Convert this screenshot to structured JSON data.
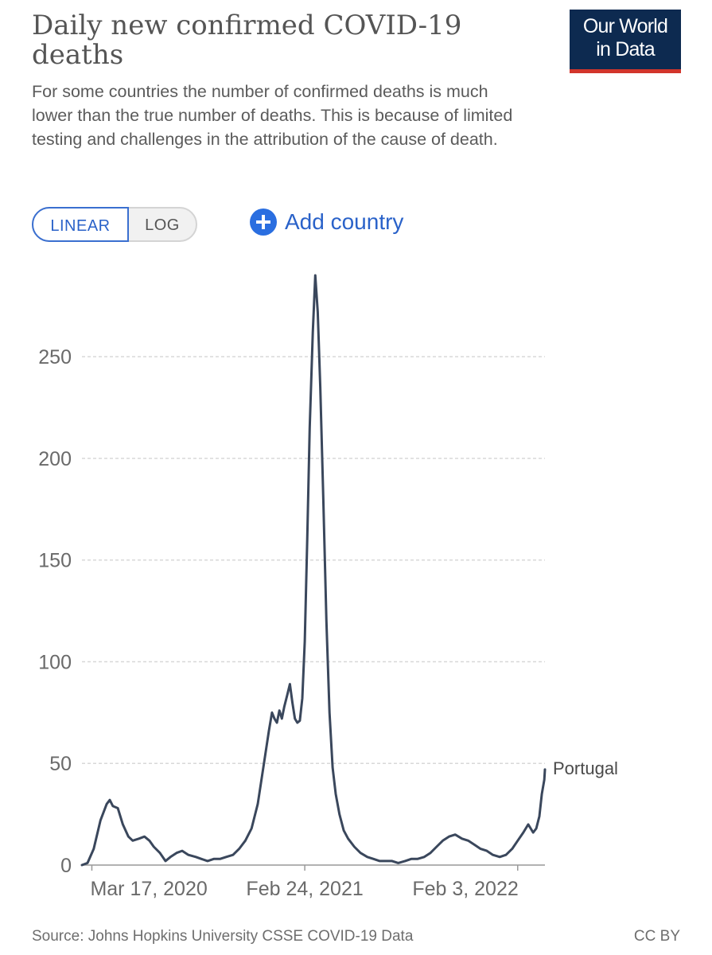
{
  "header": {
    "title": "Daily new confirmed COVID-19 deaths",
    "subtitle": "For some countries the number of confirmed deaths is much lower than the true number of deaths. This is because of limited testing and challenges in the attribution of the cause of death.",
    "logo_text": "Our World in Data"
  },
  "controls": {
    "linear_label": "LINEAR",
    "log_label": "LOG",
    "add_country_label": "Add country",
    "selected_scale": "linear"
  },
  "footer": {
    "source": "Source: Johns Hopkins University CSSE COVID-19 Data",
    "license": "CC BY"
  },
  "colors": {
    "line": "#3a475c",
    "accent_blue": "#2a62c9",
    "logo_bg": "#0d2a50",
    "logo_bar": "#d2352b"
  },
  "chart_data": {
    "type": "line",
    "title": "Daily new confirmed COVID-19 deaths",
    "ylim": [
      0,
      290
    ],
    "yticks": [
      0,
      50,
      100,
      150,
      200,
      250
    ],
    "xlim": [
      "2020-03-01",
      "2022-03-19"
    ],
    "xticks": [
      {
        "date": "2020-03-17",
        "label": "Mar 17, 2020"
      },
      {
        "date": "2021-02-24",
        "label": "Feb 24, 2021"
      },
      {
        "date": "2022-02-03",
        "label": "Feb 3, 2022"
      }
    ],
    "grid": "horizontal dashed",
    "series": [
      {
        "name": "Portugal",
        "points": [
          [
            "2020-03-01",
            0
          ],
          [
            "2020-03-10",
            1
          ],
          [
            "2020-03-20",
            8
          ],
          [
            "2020-03-31",
            22
          ],
          [
            "2020-04-10",
            30
          ],
          [
            "2020-04-15",
            32
          ],
          [
            "2020-04-20",
            29
          ],
          [
            "2020-04-28",
            28
          ],
          [
            "2020-05-06",
            20
          ],
          [
            "2020-05-15",
            14
          ],
          [
            "2020-05-22",
            12
          ],
          [
            "2020-06-01",
            13
          ],
          [
            "2020-06-10",
            14
          ],
          [
            "2020-06-18",
            12
          ],
          [
            "2020-06-25",
            9
          ],
          [
            "2020-07-05",
            6
          ],
          [
            "2020-07-14",
            2
          ],
          [
            "2020-07-22",
            4
          ],
          [
            "2020-08-01",
            6
          ],
          [
            "2020-08-10",
            7
          ],
          [
            "2020-08-20",
            5
          ],
          [
            "2020-09-01",
            4
          ],
          [
            "2020-09-10",
            3
          ],
          [
            "2020-09-20",
            2
          ],
          [
            "2020-09-30",
            3
          ],
          [
            "2020-10-10",
            3
          ],
          [
            "2020-10-20",
            4
          ],
          [
            "2020-10-31",
            5
          ],
          [
            "2020-11-10",
            8
          ],
          [
            "2020-11-20",
            12
          ],
          [
            "2020-11-30",
            18
          ],
          [
            "2020-12-10",
            30
          ],
          [
            "2020-12-20",
            50
          ],
          [
            "2020-12-28",
            66
          ],
          [
            "2021-01-02",
            75
          ],
          [
            "2021-01-06",
            72
          ],
          [
            "2021-01-10",
            70
          ],
          [
            "2021-01-14",
            76
          ],
          [
            "2021-01-18",
            72
          ],
          [
            "2021-01-22",
            78
          ],
          [
            "2021-01-27",
            84
          ],
          [
            "2021-01-31",
            89
          ],
          [
            "2021-02-04",
            80
          ],
          [
            "2021-02-08",
            72
          ],
          [
            "2021-02-12",
            70
          ],
          [
            "2021-02-16",
            71
          ],
          [
            "2021-02-20",
            82
          ],
          [
            "2021-02-24",
            110
          ],
          [
            "2021-02-28",
            160
          ],
          [
            "2021-03-04",
            215
          ],
          [
            "2021-03-09",
            262
          ],
          [
            "2021-03-13",
            290
          ],
          [
            "2021-03-17",
            272
          ],
          [
            "2021-03-21",
            235
          ],
          [
            "2021-03-26",
            180
          ],
          [
            "2021-03-31",
            120
          ],
          [
            "2021-04-05",
            75
          ],
          [
            "2021-04-10",
            48
          ],
          [
            "2021-04-15",
            35
          ],
          [
            "2021-04-21",
            25
          ],
          [
            "2021-04-28",
            17
          ],
          [
            "2021-05-05",
            13
          ],
          [
            "2021-05-15",
            9
          ],
          [
            "2021-05-25",
            6
          ],
          [
            "2021-06-05",
            4
          ],
          [
            "2021-06-15",
            3
          ],
          [
            "2021-06-25",
            2
          ],
          [
            "2021-07-05",
            2
          ],
          [
            "2021-07-15",
            2
          ],
          [
            "2021-07-25",
            1
          ],
          [
            "2021-08-05",
            2
          ],
          [
            "2021-08-15",
            3
          ],
          [
            "2021-08-25",
            3
          ],
          [
            "2021-09-05",
            4
          ],
          [
            "2021-09-15",
            6
          ],
          [
            "2021-09-25",
            9
          ],
          [
            "2021-10-05",
            12
          ],
          [
            "2021-10-15",
            14
          ],
          [
            "2021-10-25",
            15
          ],
          [
            "2021-11-05",
            13
          ],
          [
            "2021-11-15",
            12
          ],
          [
            "2021-11-25",
            10
          ],
          [
            "2021-12-05",
            8
          ],
          [
            "2021-12-15",
            7
          ],
          [
            "2021-12-25",
            5
          ],
          [
            "2022-01-05",
            4
          ],
          [
            "2022-01-15",
            5
          ],
          [
            "2022-01-25",
            8
          ],
          [
            "2022-02-03",
            12
          ],
          [
            "2022-02-12",
            16
          ],
          [
            "2022-02-20",
            20
          ],
          [
            "2022-02-28",
            16
          ],
          [
            "2022-03-05",
            18
          ],
          [
            "2022-03-10",
            24
          ],
          [
            "2022-03-14",
            35
          ],
          [
            "2022-03-18",
            42
          ],
          [
            "2022-03-19",
            47
          ]
        ]
      }
    ]
  }
}
